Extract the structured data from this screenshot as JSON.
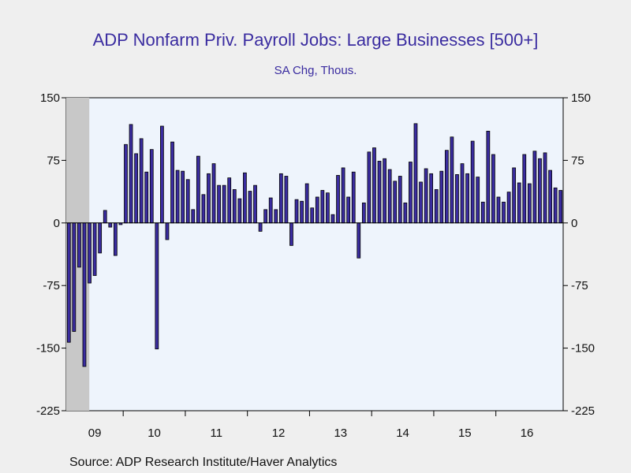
{
  "chart_data": {
    "type": "bar",
    "title": "ADP Nonfarm Priv. Payroll Jobs: Large Businesses [500+]",
    "subtitle": "SA Chg, Thous.",
    "source": "Source:  ADP Research Institute/Haver Analytics",
    "ylim": [
      -225,
      150
    ],
    "yticks": [
      150,
      75,
      0,
      -75,
      -150,
      -225
    ],
    "ytick_labels": [
      "150",
      "75",
      "0",
      "-75",
      "-150",
      "-225"
    ],
    "x_start": "2009-02",
    "x_end": "2017-01",
    "year_labels": [
      {
        "label": "09",
        "year": 2009
      },
      {
        "label": "10",
        "year": 2010
      },
      {
        "label": "11",
        "year": 2011
      },
      {
        "label": "12",
        "year": 2012
      },
      {
        "label": "13",
        "year": 2013
      },
      {
        "label": "14",
        "year": 2014
      },
      {
        "label": "15",
        "year": 2015
      },
      {
        "label": "16",
        "year": 2016
      }
    ],
    "shaded_recession": {
      "start": "2009-02",
      "end": "2009-06"
    },
    "grid": false,
    "bar_color": "#3a2ca0",
    "plot_bg": "#eef4fc",
    "series": [
      {
        "start": "2009-02",
        "values": [
          -143,
          -130,
          -53,
          -172,
          -72,
          -63,
          -36,
          15,
          -5,
          -39,
          -2,
          94,
          118,
          83,
          101,
          61,
          88,
          -151,
          116,
          -20,
          97,
          63,
          62,
          52,
          16,
          80,
          34,
          59,
          71,
          45,
          45,
          54,
          40,
          29,
          60,
          38,
          45,
          -10,
          16,
          30,
          16,
          59,
          56,
          -27,
          28,
          26,
          47,
          18,
          31,
          39,
          36,
          10,
          57,
          66,
          31,
          61,
          -42,
          24,
          85,
          90,
          74,
          77,
          64,
          50,
          56,
          24,
          73,
          119,
          49,
          65,
          59,
          40,
          62,
          87,
          103,
          58,
          71,
          59,
          98,
          55,
          25,
          110,
          82,
          31,
          25,
          37,
          66,
          48,
          82,
          47,
          86,
          77,
          84,
          63,
          42,
          39
        ]
      }
    ]
  }
}
